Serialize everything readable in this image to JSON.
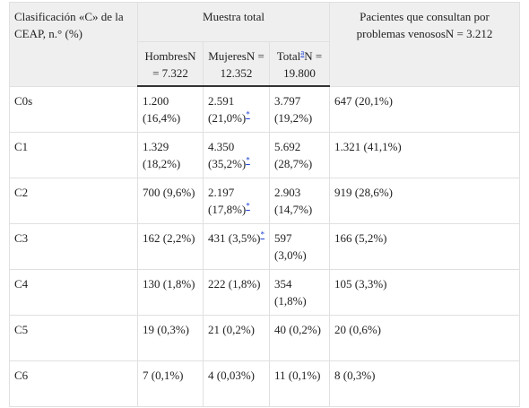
{
  "header": {
    "col1": "Clasificación «C» de la CEAP, n.° (%)",
    "group": "Muestra total",
    "col5": "Pacientes que consultan por problemas venosos",
    "col5_n": "N = 3.212",
    "sub": [
      {
        "name": "Hombres",
        "n": "N = 7.322"
      },
      {
        "name": "Mujeres",
        "n": "N = 12.352"
      },
      {
        "name": "Total",
        "note": "a",
        "n": "N = 19.800"
      }
    ]
  },
  "table": {
    "rows": [
      {
        "label": "C0s",
        "cells": [
          "1.200 (16,4%)",
          "2.591 (21,0%)",
          "3.797 (19,2%)",
          "647 (20,1%)"
        ],
        "note": "*"
      },
      {
        "label": "C1",
        "cells": [
          "1.329 (18,2%)",
          "4.350 (35,2%)",
          "5.692 (28,7%)",
          "1.321 (41,1%)"
        ],
        "note": "*"
      },
      {
        "label": "C2",
        "cells": [
          "700 (9,6%)",
          "2.197 (17,8%)",
          "2.903 (14,7%)",
          "919 (28,6%)"
        ],
        "note": "*"
      },
      {
        "label": "C3",
        "cells": [
          "162 (2,2%)",
          "431 (3,5%)",
          "597 (3,0%)",
          "166 (5,2%)"
        ],
        "note": "*"
      },
      {
        "label": "C4",
        "cells": [
          "130 (1,8%)",
          "222 (1,8%)",
          "354 (1,8%)",
          "105 (3,3%)"
        ]
      },
      {
        "label": "C5",
        "cells": [
          "19 (0,3%)",
          "21 (0,2%)",
          "40 (0,2%)",
          "20 (0,6%)"
        ]
      },
      {
        "label": "C6",
        "cells": [
          "7 (0,1%)",
          "4 (0,03%)",
          "11 (0,1%)",
          "8 (0,3%)"
        ]
      }
    ]
  }
}
